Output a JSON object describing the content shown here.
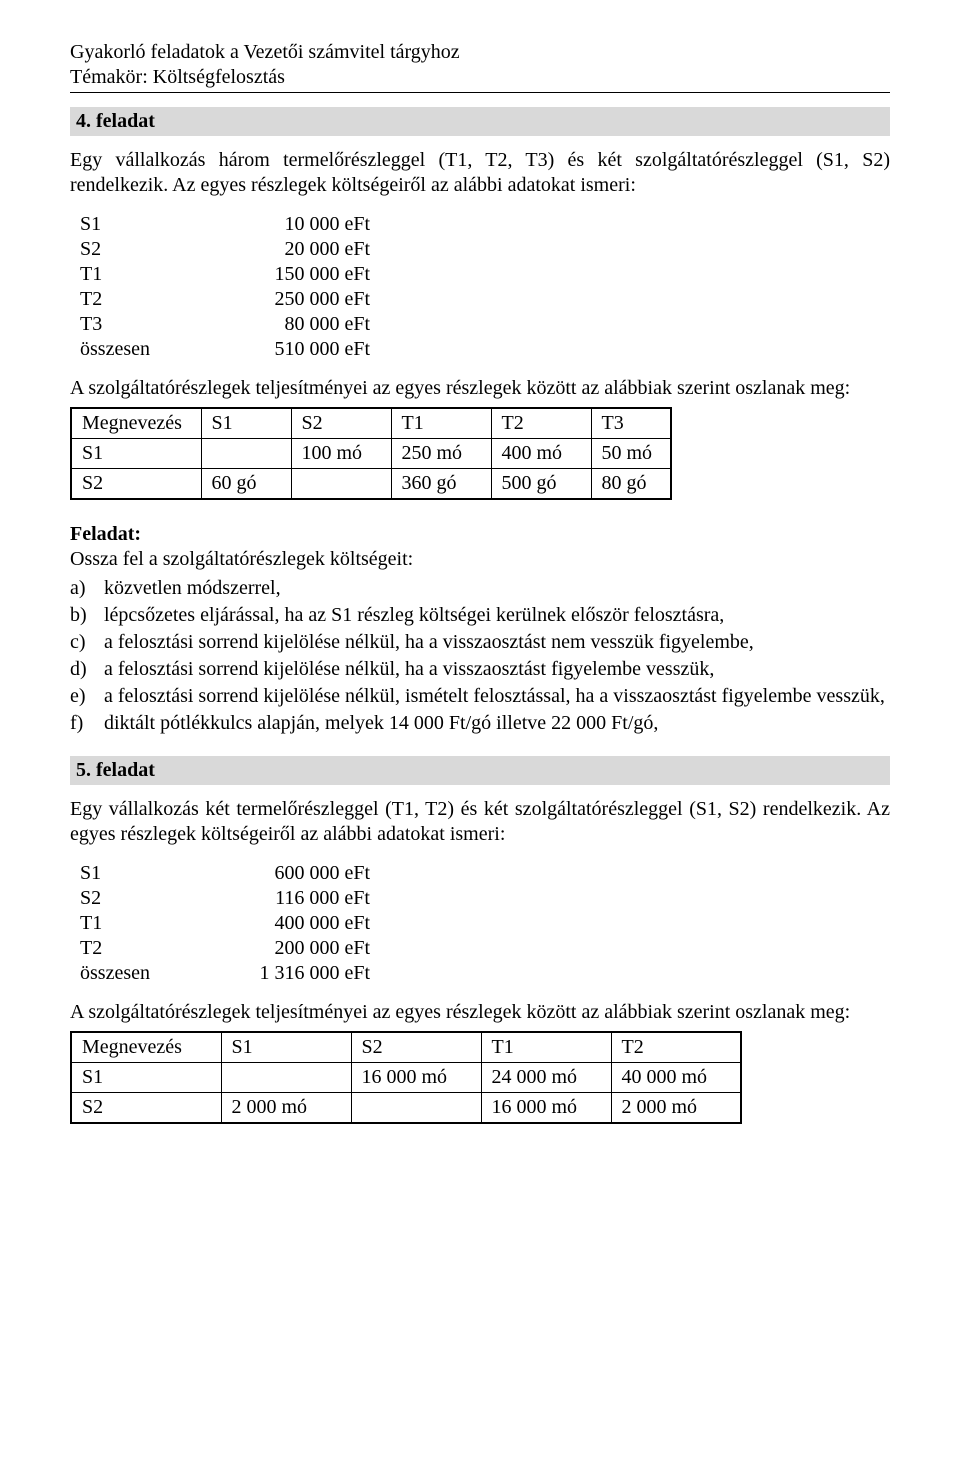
{
  "header": {
    "line1": "Gyakorló feladatok a Vezetői számvitel tárgyhoz",
    "line2": "Témakör: Költségfelosztás"
  },
  "task4": {
    "title": "4.  feladat",
    "intro": "Egy vállalkozás három termelőrészleggel (T1, T2, T3) és két szolgáltatórészleggel (S1, S2) rendelkezik. Az egyes részlegek költségeiről az alábbi adatokat ismeri:",
    "costs": [
      {
        "label": "S1",
        "value": "10 000 eFt"
      },
      {
        "label": "S2",
        "value": "20 000 eFt"
      },
      {
        "label": "T1",
        "value": "150 000 eFt"
      },
      {
        "label": "T2",
        "value": "250 000 eFt"
      },
      {
        "label": "T3",
        "value": "80 000 eFt"
      },
      {
        "label": "összesen",
        "value": "510 000 eFt"
      }
    ],
    "perf_intro": "A szolgáltatórészlegek teljesítményei az egyes részlegek között az alábbiak szerint oszlanak meg:",
    "table": {
      "headers": [
        "Megnevezés",
        "S1",
        "S2",
        "T1",
        "T2",
        "T3"
      ],
      "rows": [
        [
          "S1",
          "",
          "100 mó",
          "250 mó",
          "400 mó",
          "50 mó"
        ],
        [
          "S2",
          "60 gó",
          "",
          "360 gó",
          "500 gó",
          "80 gó"
        ]
      ],
      "col_widths": [
        "130px",
        "90px",
        "100px",
        "100px",
        "100px",
        "80px"
      ]
    },
    "feladat_label": "Feladat:",
    "feladat_lead": "Ossza fel a szolgáltatórészlegek költségeit:",
    "items": [
      {
        "m": "a)",
        "t": "közvetlen módszerrel,"
      },
      {
        "m": "b)",
        "t": "lépcsőzetes eljárással, ha az S1 részleg költségei kerülnek először felosztásra,"
      },
      {
        "m": "c)",
        "t": "a felosztási sorrend kijelölése nélkül, ha a visszaosztást nem vesszük figyelembe,"
      },
      {
        "m": "d)",
        "t": "a felosztási sorrend kijelölése nélkül, ha a visszaosztást figyelembe vesszük,"
      },
      {
        "m": "e)",
        "t": "a felosztási sorrend kijelölése nélkül, ismételt felosztással, ha a visszaosztást figyelembe vesszük,"
      },
      {
        "m": "f)",
        "t": "diktált pótlékkulcs alapján, melyek 14 000 Ft/gó illetve 22 000 Ft/gó,"
      }
    ]
  },
  "task5": {
    "title": "5.  feladat",
    "intro": "Egy vállalkozás két termelőrészleggel (T1, T2) és két szolgáltatórészleggel (S1, S2) rendelkezik. Az egyes részlegek költségeiről az alábbi adatokat ismeri:",
    "costs": [
      {
        "label": "S1",
        "value": "600 000 eFt"
      },
      {
        "label": "S2",
        "value": "116 000 eFt"
      },
      {
        "label": "T1",
        "value": "400 000 eFt"
      },
      {
        "label": "T2",
        "value": "200 000 eFt"
      },
      {
        "label": "összesen",
        "value": "1 316 000 eFt"
      }
    ],
    "perf_intro": "A szolgáltatórészlegek teljesítményei az egyes részlegek között az alábbiak szerint oszlanak meg:",
    "table": {
      "headers": [
        "Megnevezés",
        "S1",
        "S2",
        "T1",
        "T2"
      ],
      "rows": [
        [
          "S1",
          "",
          "16 000 mó",
          "24 000 mó",
          "40 000 mó"
        ],
        [
          "S2",
          "2 000 mó",
          "",
          "16 000 mó",
          "2 000 mó"
        ]
      ],
      "col_widths": [
        "150px",
        "130px",
        "130px",
        "130px",
        "130px"
      ]
    }
  }
}
